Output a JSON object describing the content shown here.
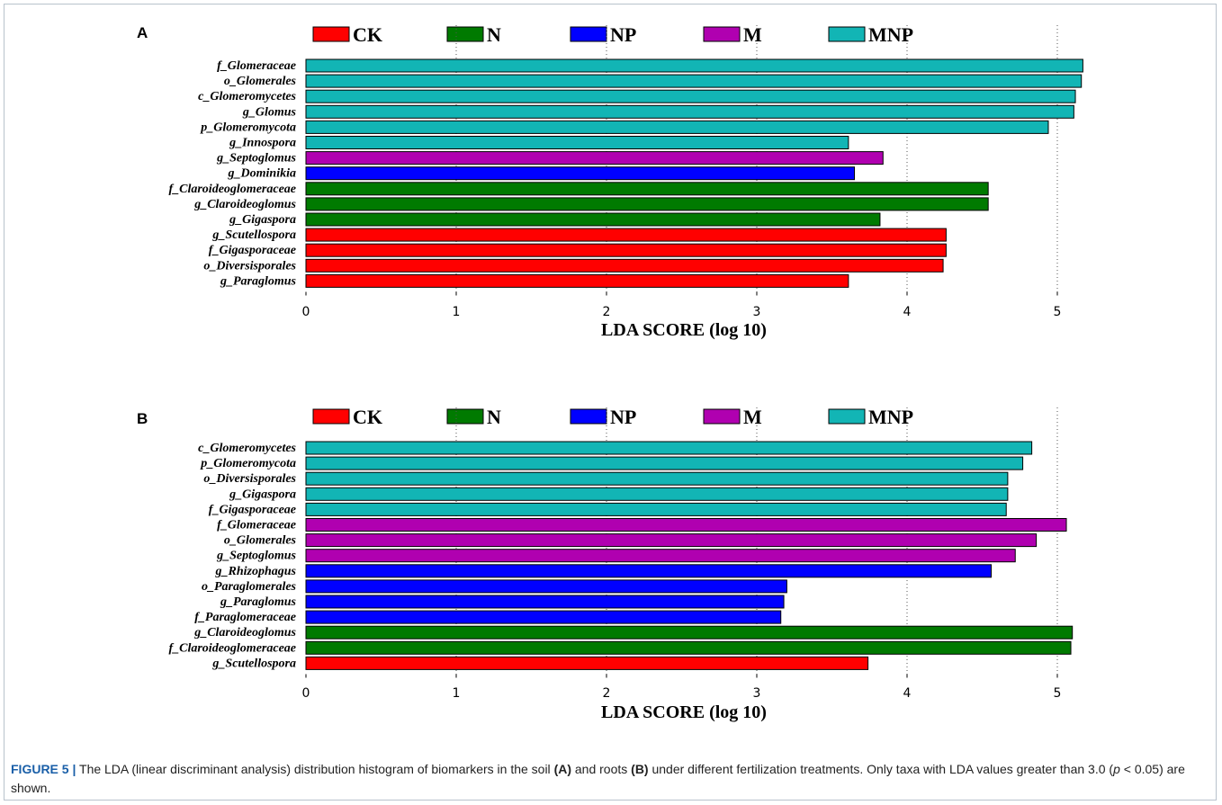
{
  "figure": {
    "caption_label": "FIGURE 5 |",
    "caption_parts": [
      {
        "t": " The LDA (linear discriminant analysis) distribution histogram of biomarkers in the soil ",
        "b": false
      },
      {
        "t": "(A)",
        "b": true
      },
      {
        "t": " and roots ",
        "b": false
      },
      {
        "t": "(B)",
        "b": true
      },
      {
        "t": " under different fertilization treatments. Only taxa with LDA values greater than 3.0 (",
        "b": false
      },
      {
        "t": "p",
        "b": false,
        "i": true
      },
      {
        "t": " < 0.05) are shown.",
        "b": false
      }
    ]
  },
  "colors": {
    "CK": "#ff0000",
    "N": "#007a00",
    "NP": "#0000ff",
    "M": "#b000b0",
    "MNP": "#12b5b5"
  },
  "chart_data": [
    {
      "type": "bar",
      "orientation": "horizontal",
      "panel": "A",
      "legend": [
        "CK",
        "N",
        "NP",
        "M",
        "MNP"
      ],
      "xlabel": "LDA SCORE (log 10)",
      "xticks": [
        "0",
        "1",
        "2",
        "3",
        "4",
        "5"
      ],
      "xlim": [
        0,
        5.2
      ],
      "grid": "vertical dotted",
      "bars": [
        {
          "label": "f_Glomeraceae",
          "value": 5.17,
          "group": "MNP"
        },
        {
          "label": "o_Glomerales",
          "value": 5.16,
          "group": "MNP"
        },
        {
          "label": "c_Glomeromycetes",
          "value": 5.12,
          "group": "MNP"
        },
        {
          "label": "g_Glomus",
          "value": 5.11,
          "group": "MNP"
        },
        {
          "label": "p_Glomeromycota",
          "value": 4.94,
          "group": "MNP"
        },
        {
          "label": "g_Innospora",
          "value": 3.61,
          "group": "MNP"
        },
        {
          "label": "g_Septoglomus",
          "value": 3.84,
          "group": "M"
        },
        {
          "label": "g_Dominikia",
          "value": 3.65,
          "group": "NP"
        },
        {
          "label": "f_Claroideoglomeraceae",
          "value": 4.54,
          "group": "N"
        },
        {
          "label": "g_Claroideoglomus",
          "value": 4.54,
          "group": "N"
        },
        {
          "label": "g_Gigaspora",
          "value": 3.82,
          "group": "N"
        },
        {
          "label": "g_Scutellospora",
          "value": 4.26,
          "group": "CK"
        },
        {
          "label": "f_Gigasporaceae",
          "value": 4.26,
          "group": "CK"
        },
        {
          "label": "o_Diversisporales",
          "value": 4.24,
          "group": "CK"
        },
        {
          "label": "g_Paraglomus",
          "value": 3.61,
          "group": "CK"
        }
      ]
    },
    {
      "type": "bar",
      "orientation": "horizontal",
      "panel": "B",
      "legend": [
        "CK",
        "N",
        "NP",
        "M",
        "MNP"
      ],
      "xlabel": "LDA SCORE (log 10)",
      "xticks": [
        "0",
        "1",
        "2",
        "3",
        "4",
        "5"
      ],
      "xlim": [
        0,
        5.2
      ],
      "grid": "vertical dotted",
      "bars": [
        {
          "label": "c_Glomeromycetes",
          "value": 4.83,
          "group": "MNP"
        },
        {
          "label": "p_Glomeromycota",
          "value": 4.77,
          "group": "MNP"
        },
        {
          "label": "o_Diversisporales",
          "value": 4.67,
          "group": "MNP"
        },
        {
          "label": "g_Gigaspora",
          "value": 4.67,
          "group": "MNP"
        },
        {
          "label": "f_Gigasporaceae",
          "value": 4.66,
          "group": "MNP"
        },
        {
          "label": "f_Glomeraceae",
          "value": 5.06,
          "group": "M"
        },
        {
          "label": "o_Glomerales",
          "value": 4.86,
          "group": "M"
        },
        {
          "label": "g_Septoglomus",
          "value": 4.72,
          "group": "M"
        },
        {
          "label": "g_Rhizophagus",
          "value": 4.56,
          "group": "NP"
        },
        {
          "label": "o_Paraglomerales",
          "value": 3.2,
          "group": "NP"
        },
        {
          "label": "g_Paraglomus",
          "value": 3.18,
          "group": "NP"
        },
        {
          "label": "f_Paraglomeraceae",
          "value": 3.16,
          "group": "NP"
        },
        {
          "label": "g_Claroideoglomus",
          "value": 5.1,
          "group": "N"
        },
        {
          "label": "f_Claroideoglomeraceae",
          "value": 5.09,
          "group": "N"
        },
        {
          "label": "g_Scutellospora",
          "value": 3.74,
          "group": "CK"
        }
      ]
    }
  ]
}
